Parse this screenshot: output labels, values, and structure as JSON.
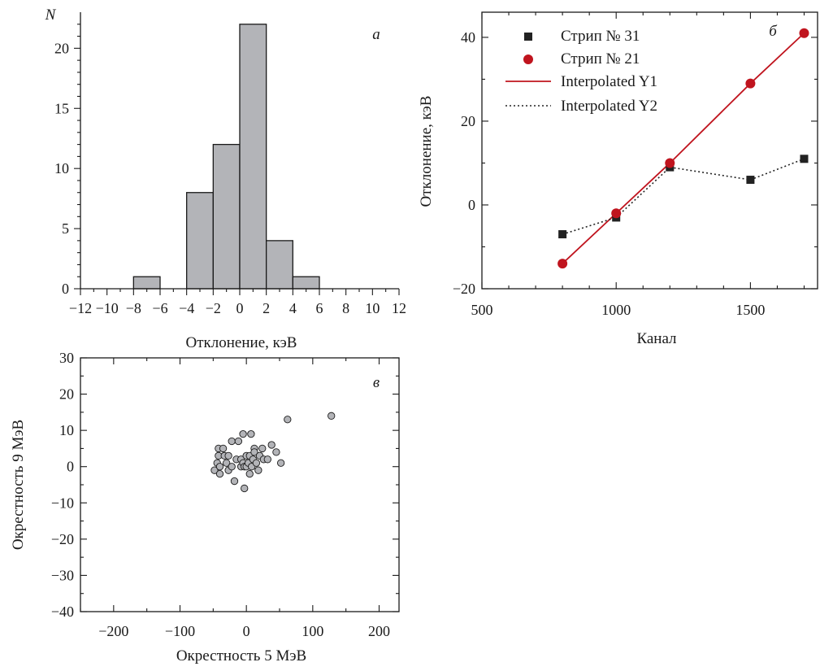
{
  "chart_data": [
    {
      "panel": "а",
      "type": "bar",
      "ylabel": "N",
      "xlabel": "Отклонение, кэВ",
      "xlim": [
        -12,
        12
      ],
      "ylim": [
        0,
        23
      ],
      "xticks": [
        -12,
        -10,
        -8,
        -6,
        -4,
        -2,
        0,
        2,
        4,
        6,
        8,
        10,
        12
      ],
      "xtick_labels": [
        "−12",
        "−10",
        "−8",
        "−6",
        "−4",
        "−2",
        "0",
        "2",
        "4",
        "6",
        "8",
        "10",
        "12"
      ],
      "yticks": [
        0,
        5,
        10,
        15,
        20
      ],
      "bins": [
        {
          "from": -8,
          "to": -6,
          "count": 1
        },
        {
          "from": -4,
          "to": -2,
          "count": 8
        },
        {
          "from": -2,
          "to": 0,
          "count": 12
        },
        {
          "from": 0,
          "to": 2,
          "count": 22
        },
        {
          "from": 2,
          "to": 4,
          "count": 4
        },
        {
          "from": 4,
          "to": 6,
          "count": 1
        }
      ],
      "bar_color": "#b3b4b8"
    },
    {
      "panel": "б",
      "type": "line",
      "xlabel": "Канал",
      "ylabel": "Отклонение, кэВ",
      "xlim": [
        500,
        1750
      ],
      "ylim": [
        -20,
        46
      ],
      "xticks": [
        500,
        1000,
        1500
      ],
      "yticks": [
        -20,
        0,
        20,
        40
      ],
      "ytick_labels": [
        "−20",
        "0",
        "20",
        "40"
      ],
      "series": [
        {
          "name": "Стрип № 31",
          "marker": "square",
          "color": "#222222",
          "x": [
            800,
            1000,
            1200,
            1500,
            1700
          ],
          "y": [
            -7,
            -3,
            9,
            6,
            11
          ]
        },
        {
          "name": "Стрип № 21",
          "marker": "circle",
          "color": "#c0141e",
          "x": [
            800,
            1000,
            1200,
            1500,
            1700
          ],
          "y": [
            -14,
            -2,
            10,
            29,
            41
          ]
        }
      ],
      "lines": [
        {
          "name": "Interpolated Y1",
          "style": "solid",
          "color": "#c0141e",
          "of": 1
        },
        {
          "name": "Interpolated Y2",
          "style": "dotted",
          "color": "#222222",
          "of": 0
        }
      ]
    },
    {
      "panel": "в",
      "type": "scatter",
      "xlabel": "Окрестность 5 МэВ",
      "ylabel": "Окрестность 9 МэВ",
      "xlim": [
        -250,
        230
      ],
      "ylim": [
        -40,
        30
      ],
      "xticks": [
        -200,
        -100,
        0,
        100,
        200
      ],
      "xtick_labels": [
        "−200",
        "−100",
        "0",
        "100",
        "200"
      ],
      "yticks": [
        -40,
        -30,
        -20,
        -10,
        0,
        10,
        20,
        30
      ],
      "ytick_labels": [
        "−40",
        "−30",
        "−20",
        "−10",
        "0",
        "10",
        "20",
        "30"
      ],
      "point_color": "#b3b4b8",
      "points": [
        [
          -48,
          -1
        ],
        [
          -44,
          1
        ],
        [
          -42,
          5
        ],
        [
          -42,
          3
        ],
        [
          -40,
          0
        ],
        [
          -40,
          -2
        ],
        [
          -35,
          5
        ],
        [
          -33,
          3
        ],
        [
          -30,
          1
        ],
        [
          -27,
          -1
        ],
        [
          -27,
          3
        ],
        [
          -22,
          0
        ],
        [
          -22,
          7
        ],
        [
          -18,
          -4
        ],
        [
          -15,
          2
        ],
        [
          -12,
          7
        ],
        [
          -8,
          0
        ],
        [
          -8,
          2
        ],
        [
          -5,
          9
        ],
        [
          -5,
          1
        ],
        [
          -3,
          -6
        ],
        [
          -3,
          0
        ],
        [
          0,
          3
        ],
        [
          0,
          0
        ],
        [
          3,
          1
        ],
        [
          5,
          3
        ],
        [
          5,
          -2
        ],
        [
          7,
          9
        ],
        [
          8,
          0
        ],
        [
          10,
          2
        ],
        [
          12,
          5
        ],
        [
          12,
          4
        ],
        [
          15,
          1
        ],
        [
          18,
          -1
        ],
        [
          20,
          3
        ],
        [
          24,
          5
        ],
        [
          26,
          2
        ],
        [
          32,
          2
        ],
        [
          38,
          6
        ],
        [
          45,
          4
        ],
        [
          52,
          1
        ],
        [
          62,
          13
        ],
        [
          128,
          14
        ]
      ]
    }
  ]
}
